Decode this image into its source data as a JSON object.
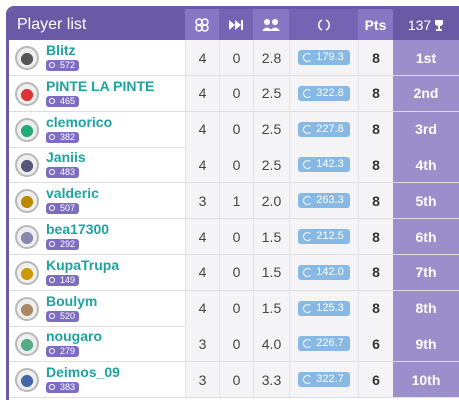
{
  "header": {
    "title": "Player list",
    "points": "Pts",
    "count": "137"
  },
  "rows": [
    {
      "name": "Blitz",
      "level": "572",
      "stat1": "4",
      "stat2": "0",
      "stat3": "2.8",
      "rating": "179.3",
      "points": "8",
      "rank": "1st"
    },
    {
      "name": "PINTE LA PINTE",
      "level": "465",
      "stat1": "4",
      "stat2": "0",
      "stat3": "2.5",
      "rating": "322.8",
      "points": "8",
      "rank": "2nd"
    },
    {
      "name": "clemorico",
      "level": "382",
      "stat1": "4",
      "stat2": "0",
      "stat3": "2.5",
      "rating": "227.8",
      "points": "8",
      "rank": "3rd"
    },
    {
      "name": "Janiis",
      "level": "483",
      "stat1": "4",
      "stat2": "0",
      "stat3": "2.5",
      "rating": "142.3",
      "points": "8",
      "rank": "4th"
    },
    {
      "name": "valderic",
      "level": "507",
      "stat1": "3",
      "stat2": "1",
      "stat3": "2.0",
      "rating": "263.3",
      "points": "8",
      "rank": "5th"
    },
    {
      "name": "bea17300",
      "level": "292",
      "stat1": "4",
      "stat2": "0",
      "stat3": "1.5",
      "rating": "212.5",
      "points": "8",
      "rank": "6th"
    },
    {
      "name": "KupaTrupa",
      "level": "149",
      "stat1": "4",
      "stat2": "0",
      "stat3": "1.5",
      "rating": "142.0",
      "points": "8",
      "rank": "7th"
    },
    {
      "name": "Boulym",
      "level": "520",
      "stat1": "4",
      "stat2": "0",
      "stat3": "1.5",
      "rating": "125.3",
      "points": "8",
      "rank": "8th"
    },
    {
      "name": "nougaro",
      "level": "279",
      "stat1": "3",
      "stat2": "0",
      "stat3": "4.0",
      "rating": "226.7",
      "points": "6",
      "rank": "9th"
    },
    {
      "name": "Deimos_09",
      "level": "383",
      "stat1": "3",
      "stat2": "0",
      "stat3": "3.3",
      "rating": "322.7",
      "points": "6",
      "rank": "10th"
    }
  ]
}
